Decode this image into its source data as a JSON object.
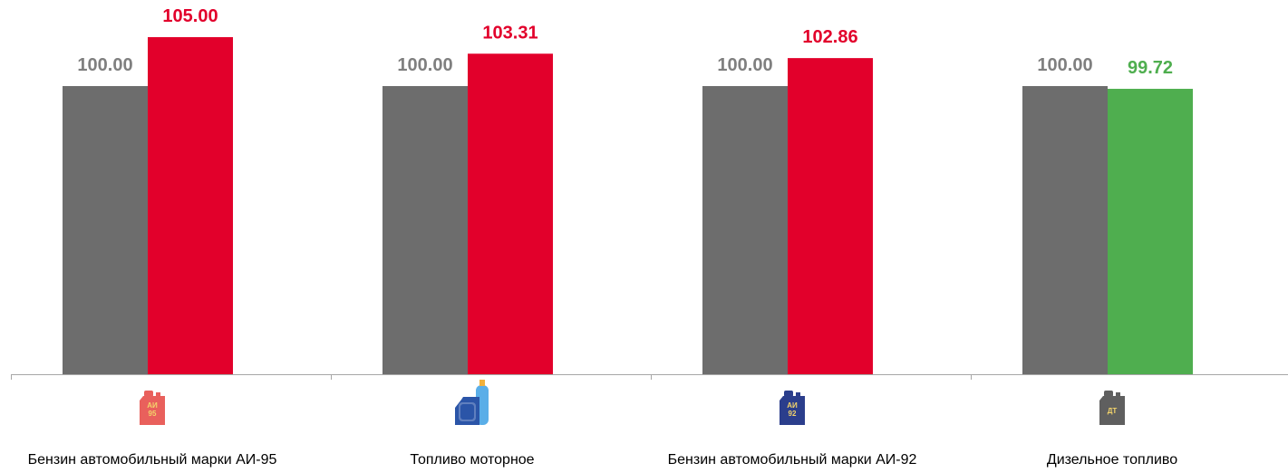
{
  "chart_data": {
    "type": "bar",
    "categories": [
      "Бензин автомобильный марки АИ-95",
      "Топливо моторное",
      "Бензин автомобильный марки АИ-92",
      "Дизельное топливо"
    ],
    "series": [
      {
        "values": [
          100.0,
          100.0,
          100.0,
          100.0
        ],
        "color": "#6d6d6d"
      },
      {
        "values": [
          105.0,
          103.31,
          102.86,
          99.72
        ],
        "colors": [
          "#e2002b",
          "#e2002b",
          "#e2002b",
          "#4fae4f"
        ]
      }
    ],
    "value_labels": [
      [
        "100.00",
        "100.00",
        "100.00",
        "100.00"
      ],
      [
        "105.00",
        "103.31",
        "102.86",
        "99.72"
      ]
    ],
    "label_colors": {
      "base": "#7f7f7f",
      "increase": "#e2002b",
      "decrease": "#4fae4f"
    },
    "title": "",
    "xlabel": "",
    "ylabel": "",
    "grid": false,
    "legend": "none"
  },
  "icons": [
    {
      "name": "canister-ai95-icon",
      "text_lines": [
        "АИ",
        "95"
      ],
      "body_color": "#e9605c",
      "text_color": "#f3d46b"
    },
    {
      "name": "gas-canister-cylinder-icon",
      "text_lines": [],
      "body_color": "#2b55a8",
      "cylinder_color": "#5aaee8"
    },
    {
      "name": "canister-ai92-icon",
      "text_lines": [
        "АИ",
        "92"
      ],
      "body_color": "#2b3e8c",
      "text_color": "#f3d46b"
    },
    {
      "name": "canister-dt-icon",
      "text_lines": [
        "ДТ"
      ],
      "body_color": "#5f5f5f",
      "text_color": "#f3d46b"
    }
  ]
}
